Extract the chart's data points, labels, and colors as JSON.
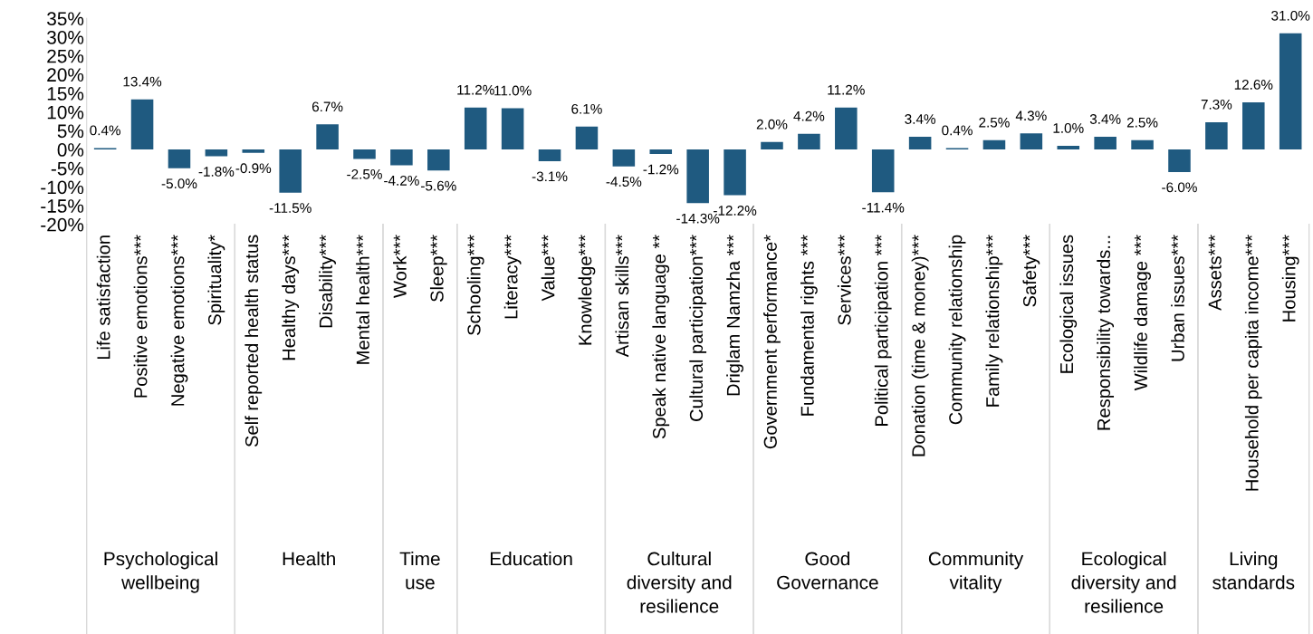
{
  "chart_data": {
    "type": "bar",
    "categories": [
      "Life satisfaction",
      "Positive emotions***",
      "Negative emotions***",
      "Spirituality*",
      "Self reported health status",
      "Healthy days***",
      "Disability***",
      "Mental health***",
      "Work***",
      "Sleep***",
      "Schooling***",
      "Literacy***",
      "Value***",
      "Knowledge***",
      "Artisan skills***",
      "Speak native language **",
      "Cultural participation***",
      "Driglam Namzha ***",
      "Government performance*",
      "Fundamental rights ***",
      "Services***",
      "Political participation ***",
      "Donation (time & money)***",
      "Community relationship",
      "Family relationship***",
      "Safety***",
      "Ecological issues",
      "Responsibility towards...",
      "Wildlife damage ***",
      "Urban issues***",
      "Assets***",
      "Household per capita income***",
      "Housing***"
    ],
    "values": [
      0.4,
      13.4,
      -5.0,
      -1.8,
      -0.9,
      -11.5,
      6.7,
      -2.5,
      -4.2,
      -5.6,
      11.2,
      11.0,
      -3.1,
      6.1,
      -4.5,
      -1.2,
      -14.3,
      -12.2,
      2.0,
      4.2,
      11.2,
      -11.4,
      3.4,
      0.4,
      2.5,
      4.3,
      1.0,
      3.4,
      2.5,
      -6.0,
      7.3,
      12.6,
      31.0
    ],
    "value_labels": [
      "0.4%",
      "13.4%",
      "-5.0%",
      "-1.8%",
      "-0.9%",
      "-11.5%",
      "6.7%",
      "-2.5%",
      "-4.2%",
      "-5.6%",
      "11.2%",
      "11.0%",
      "-3.1%",
      "6.1%",
      "-4.5%",
      "-1.2%",
      "-14.3%",
      "-12.2%",
      "2.0%",
      "4.2%",
      "11.2%",
      "-11.4%",
      "3.4%",
      "0.4%",
      "2.5%",
      "4.3%",
      "1.0%",
      "3.4%",
      "2.5%",
      "-6.0%",
      "7.3%",
      "12.6%",
      "31.0%"
    ],
    "color": "#1f5a80",
    "ylim": [
      -20,
      35
    ],
    "yticks": [
      {
        "value": -20,
        "label": "-20%"
      },
      {
        "value": -15,
        "label": "-15%"
      },
      {
        "value": -10,
        "label": "-10%"
      },
      {
        "value": -5,
        "label": "-5%"
      },
      {
        "value": 0,
        "label": "0%"
      },
      {
        "value": 5,
        "label": "5%"
      },
      {
        "value": 10,
        "label": "10%"
      },
      {
        "value": 15,
        "label": "15%"
      },
      {
        "value": 20,
        "label": "20%"
      },
      {
        "value": 25,
        "label": "25%"
      },
      {
        "value": 30,
        "label": "30%"
      },
      {
        "value": 35,
        "label": "35%"
      }
    ],
    "annotations": [
      "Psychological\nwellbeing",
      "Health",
      "Time\nuse",
      "Education",
      "Cultural\ndiversity and\nresilience",
      "Good\nGovernance",
      "Community\nvitality",
      "Ecological\ndiversity and\nresilience",
      "Living\nstandards"
    ],
    "grid": false,
    "legend": false
  }
}
